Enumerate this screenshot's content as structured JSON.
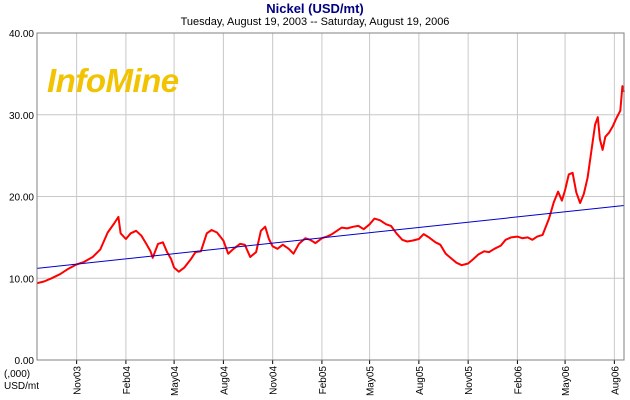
{
  "chart_data": {
    "type": "line",
    "title": "Nickel (USD/mt)",
    "subtitle": "Tuesday, August 19, 2003  --  Saturday, August 19, 2006",
    "ylabel": "(,000)\nUSD/mt",
    "xlabel": "",
    "logo_text": "InfoMine",
    "ylim": [
      0,
      40
    ],
    "yticks": [
      "0.00",
      "10.00",
      "20.00",
      "30.00",
      "40.00"
    ],
    "x_range": [
      "2003-08-19",
      "2006-08-19"
    ],
    "x_ticks": [
      {
        "label": "Nov03",
        "date": "2003-11-01"
      },
      {
        "label": "Feb04",
        "date": "2004-02-01"
      },
      {
        "label": "May04",
        "date": "2004-05-01"
      },
      {
        "label": "Aug04",
        "date": "2004-08-01"
      },
      {
        "label": "Nov04",
        "date": "2004-11-01"
      },
      {
        "label": "Feb05",
        "date": "2005-02-01"
      },
      {
        "label": "May05",
        "date": "2005-05-01"
      },
      {
        "label": "Aug05",
        "date": "2005-08-01"
      },
      {
        "label": "Nov05",
        "date": "2005-11-01"
      },
      {
        "label": "Feb06",
        "date": "2006-02-01"
      },
      {
        "label": "May06",
        "date": "2006-05-01"
      },
      {
        "label": "Aug06",
        "date": "2006-08-01"
      }
    ],
    "grid": true,
    "series": [
      {
        "color": "#ff0000",
        "points": [
          [
            "2003-08-19",
            9.4
          ],
          [
            "2003-09-01",
            9.6
          ],
          [
            "2003-09-15",
            10.0
          ],
          [
            "2003-10-01",
            10.5
          ],
          [
            "2003-10-15",
            11.1
          ],
          [
            "2003-11-01",
            11.7
          ],
          [
            "2003-11-15",
            12.0
          ],
          [
            "2003-12-01",
            12.6
          ],
          [
            "2003-12-15",
            13.5
          ],
          [
            "2003-12-29",
            15.6
          ],
          [
            "2004-01-10",
            16.7
          ],
          [
            "2004-01-18",
            17.5
          ],
          [
            "2004-01-22",
            15.5
          ],
          [
            "2004-02-01",
            14.8
          ],
          [
            "2004-02-10",
            15.5
          ],
          [
            "2004-02-20",
            15.8
          ],
          [
            "2004-03-01",
            15.2
          ],
          [
            "2004-03-10",
            14.2
          ],
          [
            "2004-03-18",
            13.3
          ],
          [
            "2004-03-22",
            12.5
          ],
          [
            "2004-04-01",
            14.2
          ],
          [
            "2004-04-10",
            14.4
          ],
          [
            "2004-04-18",
            13.2
          ],
          [
            "2004-04-25",
            12.4
          ],
          [
            "2004-05-01",
            11.3
          ],
          [
            "2004-05-10",
            10.8
          ],
          [
            "2004-05-20",
            11.3
          ],
          [
            "2004-06-01",
            12.3
          ],
          [
            "2004-06-10",
            13.2
          ],
          [
            "2004-06-20",
            13.3
          ],
          [
            "2004-07-01",
            15.5
          ],
          [
            "2004-07-10",
            15.9
          ],
          [
            "2004-07-20",
            15.6
          ],
          [
            "2004-08-01",
            14.6
          ],
          [
            "2004-08-10",
            13.0
          ],
          [
            "2004-08-20",
            13.6
          ],
          [
            "2004-09-01",
            14.2
          ],
          [
            "2004-09-10",
            14.1
          ],
          [
            "2004-09-20",
            12.6
          ],
          [
            "2004-10-01",
            13.2
          ],
          [
            "2004-10-10",
            15.8
          ],
          [
            "2004-10-18",
            16.3
          ],
          [
            "2004-10-25",
            14.8
          ],
          [
            "2004-11-01",
            13.9
          ],
          [
            "2004-11-10",
            13.6
          ],
          [
            "2004-11-20",
            14.1
          ],
          [
            "2004-12-01",
            13.6
          ],
          [
            "2004-12-10",
            13.0
          ],
          [
            "2004-12-20",
            14.2
          ],
          [
            "2005-01-01",
            14.9
          ],
          [
            "2005-01-10",
            14.7
          ],
          [
            "2005-01-20",
            14.3
          ],
          [
            "2005-02-01",
            14.9
          ],
          [
            "2005-02-10",
            15.1
          ],
          [
            "2005-02-20",
            15.4
          ],
          [
            "2005-03-01",
            15.8
          ],
          [
            "2005-03-10",
            16.2
          ],
          [
            "2005-03-20",
            16.1
          ],
          [
            "2005-04-01",
            16.3
          ],
          [
            "2005-04-10",
            16.4
          ],
          [
            "2005-04-20",
            16.0
          ],
          [
            "2005-05-01",
            16.6
          ],
          [
            "2005-05-10",
            17.3
          ],
          [
            "2005-05-20",
            17.1
          ],
          [
            "2005-06-01",
            16.6
          ],
          [
            "2005-06-10",
            16.4
          ],
          [
            "2005-06-20",
            15.5
          ],
          [
            "2005-07-01",
            14.7
          ],
          [
            "2005-07-10",
            14.5
          ],
          [
            "2005-07-20",
            14.6
          ],
          [
            "2005-08-01",
            14.8
          ],
          [
            "2005-08-10",
            15.4
          ],
          [
            "2005-08-20",
            15.0
          ],
          [
            "2005-09-01",
            14.4
          ],
          [
            "2005-09-10",
            14.1
          ],
          [
            "2005-09-20",
            13.0
          ],
          [
            "2005-10-01",
            12.4
          ],
          [
            "2005-10-10",
            11.9
          ],
          [
            "2005-10-20",
            11.6
          ],
          [
            "2005-11-01",
            11.8
          ],
          [
            "2005-11-10",
            12.3
          ],
          [
            "2005-11-20",
            12.9
          ],
          [
            "2005-12-01",
            13.3
          ],
          [
            "2005-12-10",
            13.2
          ],
          [
            "2005-12-20",
            13.6
          ],
          [
            "2006-01-01",
            14.0
          ],
          [
            "2006-01-10",
            14.7
          ],
          [
            "2006-01-20",
            15.0
          ],
          [
            "2006-02-01",
            15.1
          ],
          [
            "2006-02-10",
            14.9
          ],
          [
            "2006-02-20",
            15.0
          ],
          [
            "2006-03-01",
            14.7
          ],
          [
            "2006-03-10",
            15.1
          ],
          [
            "2006-03-20",
            15.3
          ],
          [
            "2006-04-01",
            17.3
          ],
          [
            "2006-04-10",
            19.3
          ],
          [
            "2006-04-18",
            20.6
          ],
          [
            "2006-04-25",
            19.5
          ],
          [
            "2006-05-01",
            20.8
          ],
          [
            "2006-05-08",
            22.7
          ],
          [
            "2006-05-15",
            22.9
          ],
          [
            "2006-05-22",
            20.5
          ],
          [
            "2006-05-29",
            19.2
          ],
          [
            "2006-06-05",
            20.3
          ],
          [
            "2006-06-12",
            22.3
          ],
          [
            "2006-06-19",
            25.5
          ],
          [
            "2006-06-26",
            28.8
          ],
          [
            "2006-07-01",
            29.7
          ],
          [
            "2006-07-05",
            27.0
          ],
          [
            "2006-07-10",
            25.7
          ],
          [
            "2006-07-15",
            27.3
          ],
          [
            "2006-07-22",
            27.8
          ],
          [
            "2006-07-29",
            28.6
          ],
          [
            "2006-08-05",
            29.6
          ],
          [
            "2006-08-12",
            30.5
          ],
          [
            "2006-08-16",
            33.5
          ],
          [
            "2006-08-19",
            32.8
          ]
        ]
      },
      {
        "color": "#0000cc",
        "points": [
          [
            "2003-08-19",
            11.2
          ],
          [
            "2006-08-19",
            18.9
          ]
        ]
      }
    ]
  }
}
